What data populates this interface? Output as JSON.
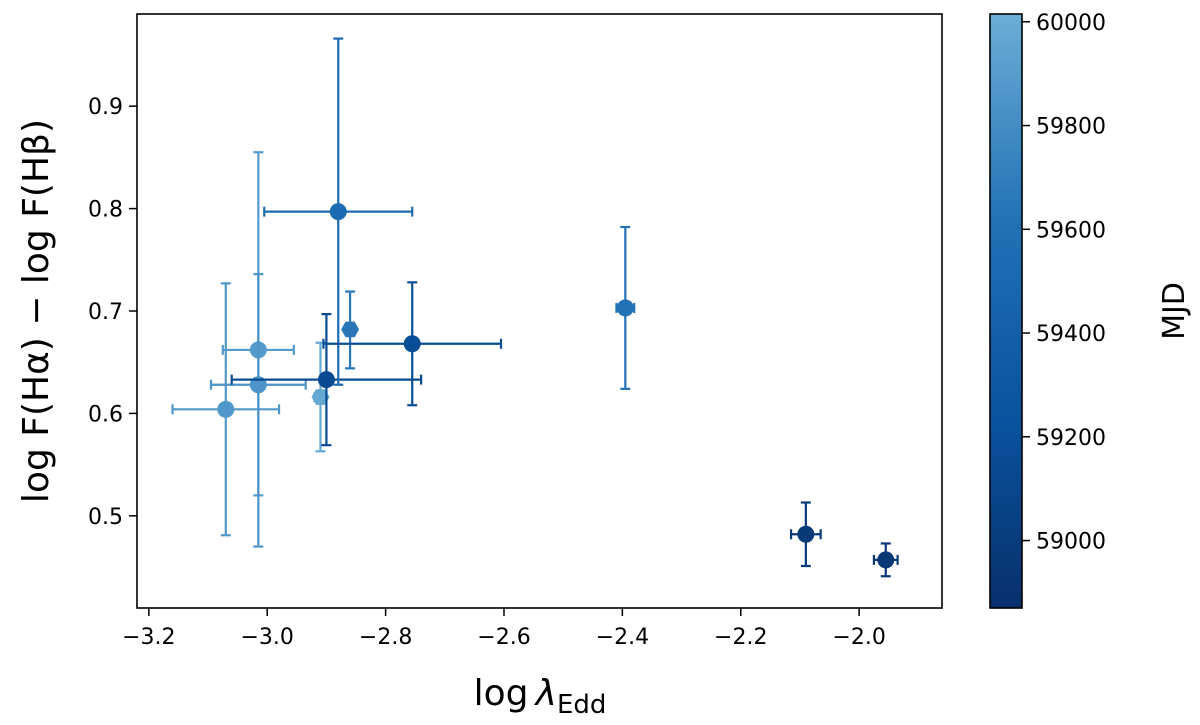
{
  "chart_data": {
    "type": "scatter",
    "title": "",
    "xlabel": {
      "main": "log ",
      "symbol": "λ",
      "sub": "Edd"
    },
    "ylabel": "log F(Hα) − log F(Hβ)",
    "xlim": [
      -3.22,
      -1.86
    ],
    "ylim": [
      0.41,
      0.99
    ],
    "x_ticks": [
      -3.2,
      -3.0,
      -2.8,
      -2.6,
      -2.4,
      -2.2,
      -2.0
    ],
    "x_tick_labels": [
      "−3.2",
      "−3.0",
      "−2.8",
      "−2.6",
      "−2.4",
      "−2.2",
      "−2.0"
    ],
    "y_ticks": [
      0.5,
      0.6,
      0.7,
      0.8,
      0.9
    ],
    "y_tick_labels": [
      "0.5",
      "0.6",
      "0.7",
      "0.8",
      "0.9"
    ],
    "grid": false,
    "colorbar": {
      "label": "MJD",
      "cmap": "Blues",
      "range": [
        58870,
        60015
      ],
      "ticks": [
        59000,
        59200,
        59400,
        59600,
        59800,
        60000
      ],
      "tick_labels": [
        "59000",
        "59200",
        "59400",
        "59600",
        "59800",
        "60000"
      ],
      "color_low": "#08306b",
      "color_high": "#6baed6"
    },
    "points": [
      {
        "x": -3.07,
        "y": 0.604,
        "xerr": 0.09,
        "yerr": [
          0.123,
          0.123
        ],
        "mjd": 59870,
        "marker": "circle"
      },
      {
        "x": -3.015,
        "y": 0.662,
        "xerr": 0.06,
        "yerr": [
          0.142,
          0.193
        ],
        "mjd": 59890,
        "marker": "circle"
      },
      {
        "x": -3.015,
        "y": 0.628,
        "xerr": 0.08,
        "yerr": [
          0.158,
          0.108
        ],
        "mjd": 59850,
        "marker": "circle"
      },
      {
        "x": -2.91,
        "y": 0.616,
        "xerr": 0.01,
        "yerr": [
          0.053,
          0.053
        ],
        "mjd": 59975,
        "marker": "hexagon"
      },
      {
        "x": -2.9,
        "y": 0.633,
        "xerr": 0.16,
        "yerr": [
          0.064,
          0.064
        ],
        "mjd": 59140,
        "marker": "circle"
      },
      {
        "x": -2.88,
        "y": 0.797,
        "xerr": 0.125,
        "yerr": [
          0.169,
          0.169
        ],
        "mjd": 59530,
        "marker": "circle"
      },
      {
        "x": -2.86,
        "y": 0.682,
        "xerr": 0.005,
        "yerr": [
          0.038,
          0.037
        ],
        "mjd": 59650,
        "marker": "hexagon"
      },
      {
        "x": -2.755,
        "y": 0.668,
        "xerr": 0.15,
        "yerr": [
          0.06,
          0.06
        ],
        "mjd": 59180,
        "marker": "circle"
      },
      {
        "x": -2.395,
        "y": 0.703,
        "xerr": 0.015,
        "yerr": [
          0.079,
          0.079
        ],
        "mjd": 59620,
        "marker": "circle"
      },
      {
        "x": -2.09,
        "y": 0.482,
        "xerr": 0.025,
        "yerr": [
          0.031,
          0.031
        ],
        "mjd": 58960,
        "marker": "circle"
      },
      {
        "x": -1.955,
        "y": 0.457,
        "xerr": 0.02,
        "yerr": [
          0.016,
          0.016
        ],
        "mjd": 58950,
        "marker": "circle"
      }
    ]
  }
}
